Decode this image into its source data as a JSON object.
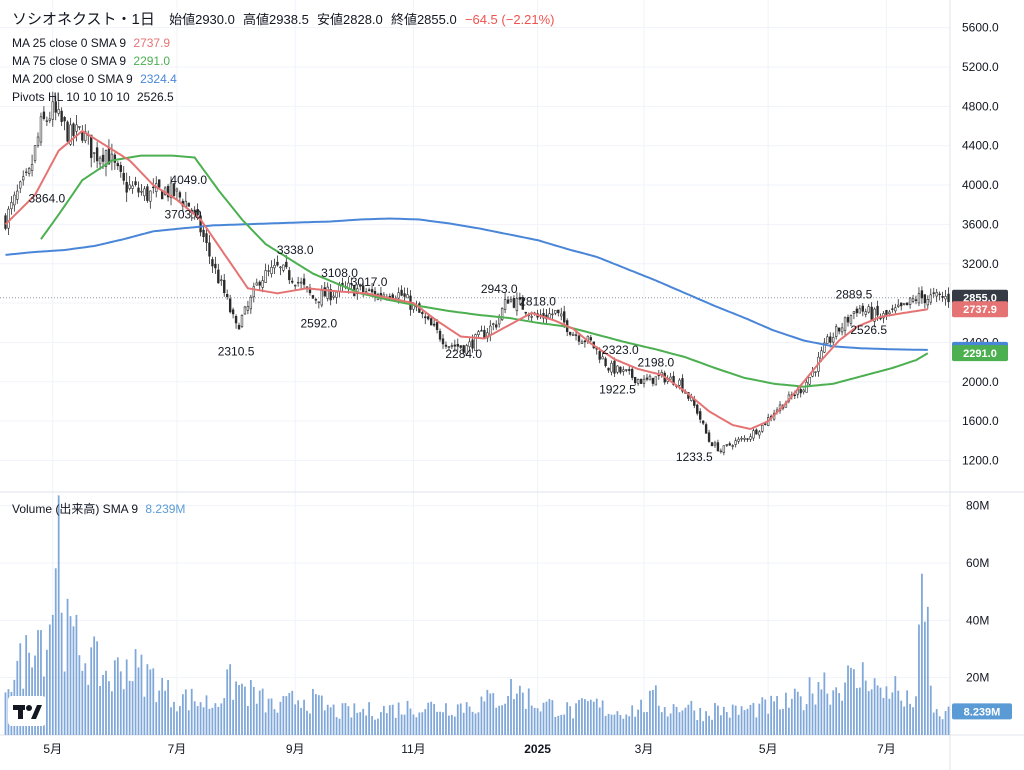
{
  "header": {
    "symbol": "ソシオネクスト・1日",
    "open_label": "始値",
    "open": "2930.0",
    "high_label": "高値",
    "high": "2938.5",
    "low_label": "安値",
    "low": "2828.0",
    "close_label": "終値",
    "close": "2855.0",
    "change": "−64.5 (−2.21%)",
    "change_color": "#ef5350"
  },
  "indicators": [
    {
      "label": "MA 25 close 0 SMA 9",
      "value": "2737.9",
      "color": "#e57373"
    },
    {
      "label": "MA 75 close 0 SMA 9",
      "value": "2291.0",
      "color": "#4caf50"
    },
    {
      "label": "MA 200 close 0 SMA 9",
      "value": "2324.4",
      "color": "#4a86d8"
    },
    {
      "label": "Pivots HL 10 10 10 10",
      "value": "2526.5",
      "color": "#131722"
    }
  ],
  "volume_legend": {
    "label": "Volume (出来高) SMA 9",
    "value": "8.239M",
    "color": "#5b9bd5"
  },
  "price_badges": [
    {
      "value": "2855.0",
      "price": 2855.0,
      "color": "#363a45"
    },
    {
      "value": "2737.9",
      "price": 2737.9,
      "color": "#e57373"
    },
    {
      "value": "2324.4",
      "price": 2324.4,
      "color": "#4a86d8"
    },
    {
      "value": "2291.0",
      "price": 2291.0,
      "color": "#4caf50"
    }
  ],
  "volume_badge": {
    "value": "8.239M",
    "volume": 8.239,
    "color": "#5b9bd5"
  },
  "chart_data": {
    "type": "line",
    "title": "ソシオネクスト・1日",
    "price_axis": {
      "ticks": [
        1200,
        1600,
        2000,
        2400,
        2800,
        3200,
        3600,
        4000,
        4400,
        4800,
        5200,
        5600
      ],
      "tick_labels": [
        "1200.0",
        "1600.0",
        "2000.0",
        "2400.0",
        "2800.0",
        "3200.0",
        "3600.0",
        "4000.0",
        "4400.0",
        "4800.0",
        "5200.0",
        "5600.0"
      ],
      "range": [
        900,
        5800
      ]
    },
    "volume_axis": {
      "ticks": [
        20,
        40,
        60,
        80
      ],
      "tick_labels": [
        "20M",
        "40M",
        "60M",
        "80M"
      ],
      "unit": "M",
      "range": [
        0,
        82
      ]
    },
    "x_axis": {
      "labels": [
        "5月",
        "7月",
        "9月",
        "11月",
        "2025",
        "3月",
        "5月",
        "7月"
      ],
      "label_index": [
        16,
        58,
        98,
        138,
        180,
        216,
        258,
        298
      ]
    },
    "n_bars": 320,
    "anchors_close": [
      [
        0,
        3650
      ],
      [
        4,
        3900
      ],
      [
        8,
        4100
      ],
      [
        12,
        4600
      ],
      [
        16,
        4750
      ],
      [
        22,
        4500
      ],
      [
        26,
        4550
      ],
      [
        30,
        4300
      ],
      [
        34,
        4350
      ],
      [
        40,
        4000
      ],
      [
        48,
        3900
      ],
      [
        54,
        3950
      ],
      [
        58,
        3900
      ],
      [
        62,
        3800
      ],
      [
        66,
        3550
      ],
      [
        70,
        3200
      ],
      [
        74,
        2900
      ],
      [
        78,
        2550
      ],
      [
        82,
        2750
      ],
      [
        86,
        3050
      ],
      [
        92,
        3150
      ],
      [
        98,
        3050
      ],
      [
        104,
        2850
      ],
      [
        110,
        2900
      ],
      [
        116,
        2950
      ],
      [
        120,
        2930
      ],
      [
        126,
        2880
      ],
      [
        130,
        2920
      ],
      [
        134,
        2880
      ],
      [
        138,
        2760
      ],
      [
        144,
        2560
      ],
      [
        150,
        2380
      ],
      [
        156,
        2350
      ],
      [
        160,
        2450
      ],
      [
        166,
        2600
      ],
      [
        170,
        2850
      ],
      [
        176,
        2750
      ],
      [
        180,
        2650
      ],
      [
        186,
        2700
      ],
      [
        192,
        2500
      ],
      [
        198,
        2400
      ],
      [
        204,
        2150
      ],
      [
        210,
        2080
      ],
      [
        216,
        2000
      ],
      [
        222,
        2050
      ],
      [
        228,
        2000
      ],
      [
        234,
        1700
      ],
      [
        238,
        1400
      ],
      [
        242,
        1300
      ],
      [
        246,
        1380
      ],
      [
        250,
        1420
      ],
      [
        256,
        1550
      ],
      [
        260,
        1700
      ],
      [
        264,
        1800
      ],
      [
        270,
        1950
      ],
      [
        274,
        2150
      ],
      [
        278,
        2400
      ],
      [
        284,
        2600
      ],
      [
        288,
        2750
      ],
      [
        292,
        2700
      ],
      [
        296,
        2650
      ],
      [
        300,
        2700
      ],
      [
        304,
        2750
      ],
      [
        308,
        2850
      ],
      [
        312,
        2855
      ]
    ],
    "pivots": [
      {
        "label": "3864.0",
        "price": 3864.0,
        "index": 14
      },
      {
        "label": "3703.0",
        "price": 3703.0,
        "index": 60
      },
      {
        "label": "4049.0",
        "price": 4049.0,
        "index": 62
      },
      {
        "label": "3338.0",
        "price": 3338.0,
        "index": 98
      },
      {
        "label": "2310.5",
        "price": 2310.5,
        "index": 78
      },
      {
        "label": "3108.0",
        "price": 3108.0,
        "index": 113
      },
      {
        "label": "3017.0",
        "price": 3017.0,
        "index": 123
      },
      {
        "label": "2592.0",
        "price": 2592.0,
        "index": 106
      },
      {
        "label": "2943.0",
        "price": 2943.0,
        "index": 167
      },
      {
        "label": "2818.0",
        "price": 2818.0,
        "index": 180
      },
      {
        "label": "2284.0",
        "price": 2284.0,
        "index": 155
      },
      {
        "label": "2323.0",
        "price": 2323.0,
        "index": 208
      },
      {
        "label": "2198.0",
        "price": 2198.0,
        "index": 220
      },
      {
        "label": "1922.5",
        "price": 1922.5,
        "index": 207
      },
      {
        "label": "1233.5",
        "price": 1233.5,
        "index": 233
      },
      {
        "label": "2889.5",
        "price": 2889.5,
        "index": 287
      },
      {
        "label": "2526.5",
        "price": 2526.5,
        "index": 292
      }
    ],
    "ma_lines": {
      "ma25": {
        "color": "#e57373",
        "last": 2737.9,
        "anchors": [
          [
            0,
            3600
          ],
          [
            10,
            3900
          ],
          [
            18,
            4350
          ],
          [
            26,
            4550
          ],
          [
            34,
            4400
          ],
          [
            42,
            4250
          ],
          [
            50,
            4000
          ],
          [
            58,
            3850
          ],
          [
            66,
            3650
          ],
          [
            74,
            3300
          ],
          [
            82,
            2950
          ],
          [
            92,
            2900
          ],
          [
            102,
            2950
          ],
          [
            112,
            2920
          ],
          [
            122,
            2900
          ],
          [
            130,
            2850
          ],
          [
            138,
            2800
          ],
          [
            146,
            2620
          ],
          [
            154,
            2460
          ],
          [
            162,
            2440
          ],
          [
            170,
            2570
          ],
          [
            178,
            2700
          ],
          [
            186,
            2620
          ],
          [
            192,
            2540
          ],
          [
            198,
            2390
          ],
          [
            206,
            2230
          ],
          [
            214,
            2130
          ],
          [
            222,
            2070
          ],
          [
            230,
            1900
          ],
          [
            238,
            1700
          ],
          [
            246,
            1560
          ],
          [
            252,
            1520
          ],
          [
            258,
            1600
          ],
          [
            264,
            1780
          ],
          [
            270,
            2000
          ],
          [
            276,
            2220
          ],
          [
            282,
            2420
          ],
          [
            288,
            2560
          ],
          [
            296,
            2660
          ],
          [
            304,
            2700
          ],
          [
            312,
            2738
          ]
        ]
      },
      "ma75": {
        "color": "#4caf50",
        "last": 2291.0,
        "anchors": [
          [
            12,
            3450
          ],
          [
            18,
            3700
          ],
          [
            26,
            4050
          ],
          [
            36,
            4250
          ],
          [
            46,
            4300
          ],
          [
            56,
            4300
          ],
          [
            64,
            4280
          ],
          [
            72,
            3950
          ],
          [
            80,
            3650
          ],
          [
            88,
            3400
          ],
          [
            96,
            3250
          ],
          [
            104,
            3100
          ],
          [
            112,
            3000
          ],
          [
            120,
            2900
          ],
          [
            130,
            2830
          ],
          [
            140,
            2770
          ],
          [
            150,
            2720
          ],
          [
            160,
            2680
          ],
          [
            170,
            2650
          ],
          [
            180,
            2600
          ],
          [
            190,
            2560
          ],
          [
            200,
            2480
          ],
          [
            210,
            2400
          ],
          [
            220,
            2330
          ],
          [
            230,
            2250
          ],
          [
            240,
            2140
          ],
          [
            250,
            2040
          ],
          [
            260,
            1980
          ],
          [
            270,
            1950
          ],
          [
            280,
            1980
          ],
          [
            290,
            2060
          ],
          [
            300,
            2140
          ],
          [
            308,
            2220
          ],
          [
            312,
            2291
          ]
        ]
      },
      "ma200": {
        "color": "#4a86d8",
        "last": 2324.4,
        "anchors": [
          [
            0,
            3290
          ],
          [
            10,
            3320
          ],
          [
            20,
            3340
          ],
          [
            30,
            3380
          ],
          [
            40,
            3450
          ],
          [
            50,
            3530
          ],
          [
            60,
            3560
          ],
          [
            70,
            3590
          ],
          [
            80,
            3600
          ],
          [
            90,
            3610
          ],
          [
            100,
            3620
          ],
          [
            110,
            3630
          ],
          [
            120,
            3650
          ],
          [
            130,
            3660
          ],
          [
            140,
            3650
          ],
          [
            150,
            3610
          ],
          [
            160,
            3560
          ],
          [
            170,
            3500
          ],
          [
            180,
            3440
          ],
          [
            190,
            3350
          ],
          [
            200,
            3270
          ],
          [
            210,
            3150
          ],
          [
            220,
            3030
          ],
          [
            230,
            2900
          ],
          [
            240,
            2770
          ],
          [
            250,
            2650
          ],
          [
            260,
            2520
          ],
          [
            270,
            2420
          ],
          [
            280,
            2360
          ],
          [
            290,
            2340
          ],
          [
            300,
            2330
          ],
          [
            312,
            2324
          ]
        ]
      }
    },
    "volume": {
      "unit": "M",
      "sma9_last": 8.239,
      "anchors": [
        [
          0,
          22
        ],
        [
          4,
          25
        ],
        [
          8,
          32
        ],
        [
          10,
          48
        ],
        [
          12,
          38
        ],
        [
          14,
          36
        ],
        [
          16,
          55
        ],
        [
          18,
          80
        ],
        [
          20,
          40
        ],
        [
          24,
          35
        ],
        [
          28,
          30
        ],
        [
          32,
          25
        ],
        [
          36,
          22
        ],
        [
          40,
          28
        ],
        [
          44,
          25
        ],
        [
          50,
          22
        ],
        [
          56,
          15
        ],
        [
          62,
          14
        ],
        [
          70,
          12
        ],
        [
          76,
          20
        ],
        [
          80,
          18
        ],
        [
          86,
          14
        ],
        [
          92,
          10
        ],
        [
          100,
          15
        ],
        [
          106,
          12
        ],
        [
          112,
          9
        ],
        [
          120,
          9
        ],
        [
          130,
          10
        ],
        [
          140,
          11
        ],
        [
          150,
          11
        ],
        [
          160,
          12
        ],
        [
          168,
          15
        ],
        [
          172,
          18
        ],
        [
          180,
          12
        ],
        [
          186,
          11
        ],
        [
          192,
          9
        ],
        [
          198,
          12
        ],
        [
          206,
          9
        ],
        [
          214,
          10
        ],
        [
          220,
          14
        ],
        [
          224,
          10
        ],
        [
          230,
          12
        ],
        [
          236,
          8
        ],
        [
          240,
          10
        ],
        [
          246,
          9
        ],
        [
          252,
          10
        ],
        [
          258,
          11
        ],
        [
          264,
          12
        ],
        [
          270,
          14
        ],
        [
          276,
          22
        ],
        [
          280,
          17
        ],
        [
          284,
          22
        ],
        [
          288,
          20
        ],
        [
          292,
          25
        ],
        [
          296,
          15
        ],
        [
          300,
          20
        ],
        [
          304,
          12
        ],
        [
          308,
          15
        ],
        [
          310,
          48
        ],
        [
          312,
          40
        ],
        [
          314,
          8
        ]
      ]
    }
  }
}
